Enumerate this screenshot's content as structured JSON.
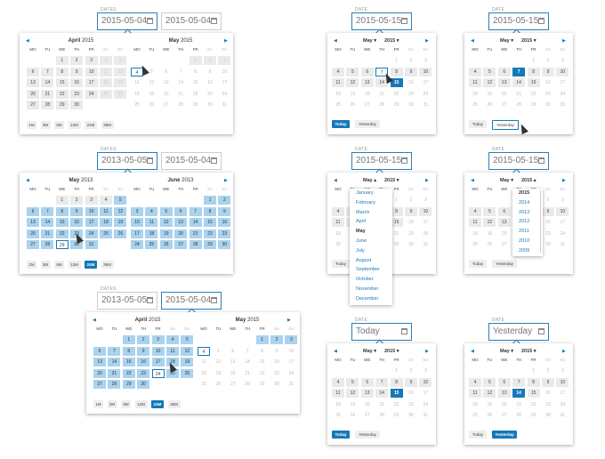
{
  "weekdays": [
    "MO",
    "TU",
    "WE",
    "TH",
    "FR",
    "SA",
    "SU"
  ],
  "labels": {
    "dates": "DATES",
    "date": "DATE"
  },
  "range_pickers": [
    {
      "from": "2015-05-04",
      "to": "2015-05-04",
      "months": [
        {
          "name": "April",
          "year": "2015"
        },
        {
          "name": "May",
          "year": "2015"
        }
      ],
      "presets": [
        "1M",
        "3M",
        "6M",
        "12M",
        "24M",
        "36M"
      ]
    },
    {
      "from": "2013-05-05",
      "to": "2015-05-04",
      "months": [
        {
          "name": "May",
          "year": "2013"
        },
        {
          "name": "June",
          "year": "2013"
        }
      ],
      "presets": [
        "1M",
        "3M",
        "6M",
        "12M",
        "24M",
        "36M"
      ]
    },
    {
      "from": "2013-05-05",
      "to": "2015-05-04",
      "months": [
        {
          "name": "April",
          "year": "2015"
        },
        {
          "name": "May",
          "year": "2015"
        }
      ],
      "presets": [
        "1M",
        "3M",
        "6M",
        "12M",
        "24M",
        "36M"
      ]
    }
  ],
  "single_pickers": [
    {
      "value": "2015-05-15",
      "month": "May",
      "year": "2015"
    },
    {
      "value": "2015-05-15",
      "month": "May",
      "year": "2015"
    },
    {
      "value": "2015-05-15",
      "month": "May",
      "year": "2015"
    },
    {
      "value": "2015-05-15",
      "month": "May",
      "year": "2015"
    },
    {
      "value": "Today",
      "month": "May",
      "year": "2015"
    },
    {
      "value": "Yesterday",
      "month": "May",
      "year": "2015"
    }
  ],
  "buttons": {
    "today": "Today",
    "yesterday": "Yesterday"
  },
  "month_list": [
    "January",
    "February",
    "March",
    "April",
    "May",
    "June",
    "July",
    "August",
    "September",
    "October",
    "November",
    "December"
  ],
  "year_list": [
    "2015",
    "2014",
    "2013",
    "2012",
    "2011",
    "2010",
    "2009"
  ],
  "calendars": {
    "april2015": [
      [
        "",
        "",
        "1",
        "2",
        "3",
        "4",
        "5"
      ],
      [
        "6",
        "7",
        "8",
        "9",
        "10",
        "11",
        "12"
      ],
      [
        "13",
        "14",
        "15",
        "16",
        "17",
        "18",
        "19"
      ],
      [
        "20",
        "21",
        "22",
        "23",
        "24",
        "25",
        "26"
      ],
      [
        "27",
        "28",
        "29",
        "30",
        "",
        "",
        ""
      ]
    ],
    "may2015": [
      [
        "",
        "",
        "",
        "",
        "1",
        "2",
        "3"
      ],
      [
        "4",
        "5",
        "6",
        "7",
        "8",
        "9",
        "10"
      ],
      [
        "11",
        "12",
        "13",
        "14",
        "15",
        "16",
        "17"
      ],
      [
        "18",
        "19",
        "20",
        "21",
        "22",
        "23",
        "24"
      ],
      [
        "25",
        "26",
        "27",
        "28",
        "29",
        "30",
        "31"
      ]
    ],
    "may2013": [
      [
        "",
        "",
        "1",
        "2",
        "3",
        "4",
        "5"
      ],
      [
        "6",
        "7",
        "8",
        "9",
        "10",
        "11",
        "12"
      ],
      [
        "13",
        "14",
        "15",
        "16",
        "17",
        "18",
        "19"
      ],
      [
        "20",
        "21",
        "22",
        "23",
        "24",
        "25",
        "26"
      ],
      [
        "27",
        "28",
        "29",
        "30",
        "31",
        "",
        ""
      ]
    ],
    "june2013": [
      [
        "",
        "",
        "",
        "",
        "",
        "1",
        "2"
      ],
      [
        "3",
        "4",
        "5",
        "6",
        "7",
        "8",
        "9"
      ],
      [
        "10",
        "11",
        "12",
        "13",
        "14",
        "15",
        "16"
      ],
      [
        "17",
        "18",
        "19",
        "20",
        "21",
        "22",
        "23"
      ],
      [
        "24",
        "25",
        "26",
        "27",
        "28",
        "29",
        "30"
      ]
    ]
  },
  "colors": {
    "accent": "#1479b8",
    "range": "#a9d3ee",
    "in_month": "#eaeaea"
  }
}
